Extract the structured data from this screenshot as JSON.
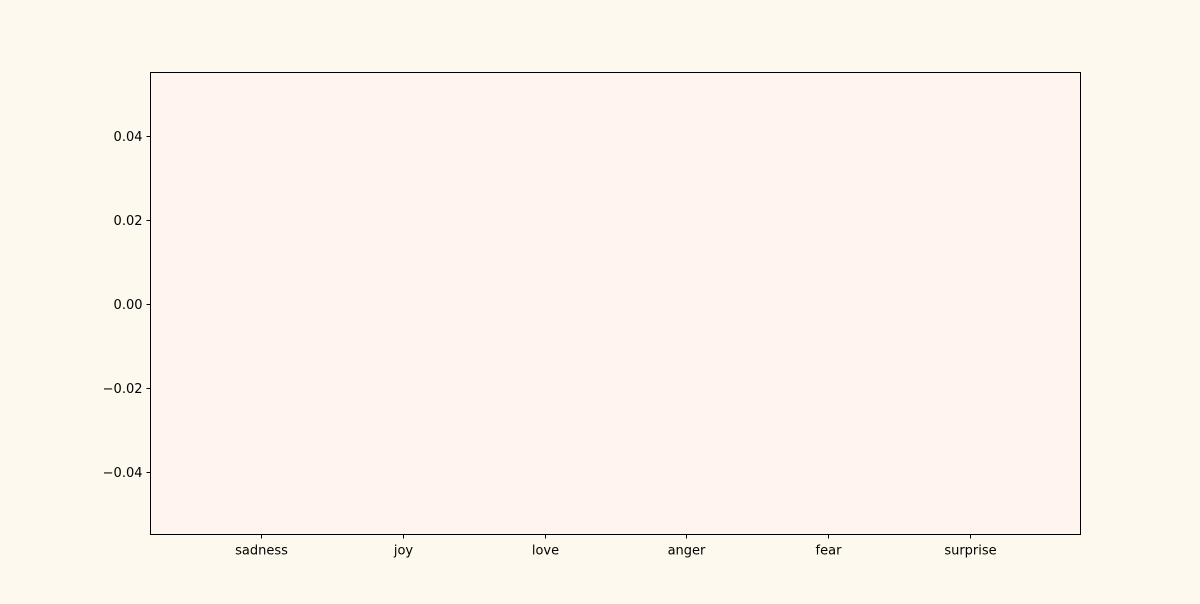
{
  "chart_data": {
    "type": "bar",
    "categories": [
      "sadness",
      "joy",
      "love",
      "anger",
      "fear",
      "surprise"
    ],
    "values": [
      0,
      0,
      0,
      0,
      0,
      0
    ],
    "title": "",
    "xlabel": "",
    "ylabel": "",
    "ylim": [
      -0.055,
      0.055
    ],
    "yticks": [
      -0.04,
      -0.02,
      0.0,
      0.02,
      0.04
    ],
    "ytick_labels": [
      "−0.04",
      "−0.02",
      "0.00",
      "0.02",
      "0.04"
    ],
    "grid": false,
    "colors": {
      "figure_background": "#fef9ee",
      "plot_background": "#fff4ee",
      "axis": "#000000"
    }
  }
}
